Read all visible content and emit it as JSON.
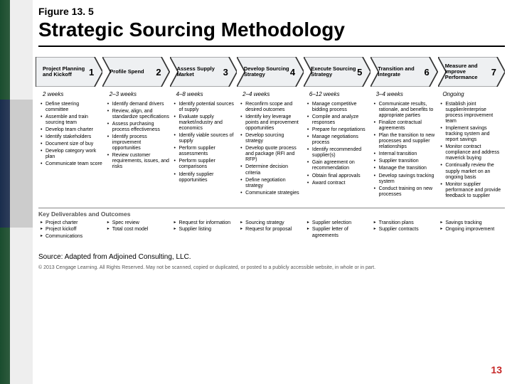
{
  "figure_label": "Figure 13. 5",
  "title": "Strategic Sourcing Methodology",
  "steps": [
    {
      "n": "1",
      "label": "Project Planning and Kickoff",
      "dur": "2 weeks",
      "bullets": [
        "Define steering committee",
        "Assemble and train sourcing team",
        "Develop team charter",
        "Identify stakeholders",
        "Document size of buy",
        "Develop category work plan",
        "Communicate team score"
      ],
      "deliv": [
        "Project charter",
        "Project kickoff",
        "Communications"
      ]
    },
    {
      "n": "2",
      "label": "Profile Spend",
      "dur": "2–3 weeks",
      "bullets": [
        "Identify demand drivers",
        "Review, align, and standardize specifications",
        "Assess purchasing process effectiveness",
        "Identify process improvement opportunities",
        "Review customer requirements, issues, and risks"
      ],
      "deliv": [
        "Spec review",
        "Total cost model"
      ]
    },
    {
      "n": "3",
      "label": "Assess Supply Market",
      "dur": "4–8 weeks",
      "bullets": [
        "Identify potential sources of supply",
        "Evaluate supply market/industry and economics",
        "Identify viable sources of supply",
        "Perform supplier assessments",
        "Perform supplier comparisons",
        "Identify supplier opportunities"
      ],
      "deliv": [
        "Request for information",
        "Supplier listing"
      ]
    },
    {
      "n": "4",
      "label": "Develop Sourcing Strategy",
      "dur": "2–4 weeks",
      "bullets": [
        "Reconfirm scope and desired outcomes",
        "Identify key leverage points and improvement opportunities",
        "Develop sourcing strategy",
        "Develop quote process and package (RFI and RFP)",
        "Determine decision criteria",
        "Define negotiation strategy",
        "Communicate strategies"
      ],
      "deliv": [
        "Sourcing strategy",
        "Request for proposal"
      ]
    },
    {
      "n": "5",
      "label": "Execute Sourcing Strategy",
      "dur": "6–12 weeks",
      "bullets": [
        "Manage competitive bidding process",
        "Compile and analyze responses",
        "Prepare for negotiations",
        "Manage negotiations process",
        "Identify recommended supplier(s)",
        "Gain agreement on recommendation",
        "Obtain final approvals",
        "Award contract"
      ],
      "deliv": [
        "Supplier selection",
        "Supplier letter of agreements"
      ]
    },
    {
      "n": "6",
      "label": "Transition and Integrate",
      "dur": "3–4 weeks",
      "bullets": [
        "Communicate results, rationale, and benefits to appropriate parties",
        "Finalize contractual agreements",
        "Plan the transition to new processes and supplier relationships",
        "Internal transition",
        "Supplier transition",
        "Manage the transition",
        "Develop savings tracking system",
        "Conduct training on new processes"
      ],
      "deliv": [
        "Transition plans",
        "Supplier contracts"
      ]
    },
    {
      "n": "7",
      "label": "Measure and Improve Performance",
      "dur": "Ongoing",
      "bullets": [
        "Establish joint supplier/enterprise process improvement team",
        "Implement savings tracking system and report savings",
        "Monitor contract compliance and address maverick buying",
        "Continually review the supply market on an ongoing basis",
        "Monitor supplier performance and provide feedback to supplier"
      ],
      "deliv": [
        "Savings tracking",
        "Ongoing improvement"
      ]
    }
  ],
  "deliv_heading": "Key Deliverables and Outcomes",
  "source": "Source: Adapted from Adjoined Consulting, LLC.",
  "copyright": "© 2013 Cengage Learning. All Rights Reserved. May not be scanned, copied or duplicated, or posted to a publicly accessible website, in whole or in part.",
  "page_num": "13",
  "colors": {
    "chevron_fill": "#eef0f2",
    "chevron_stroke": "#333333"
  }
}
